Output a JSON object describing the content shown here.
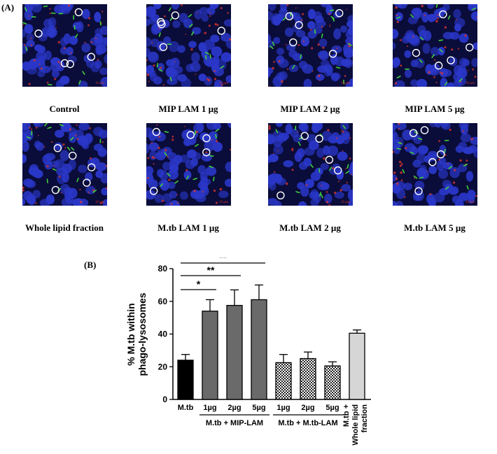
{
  "panel_a_label": "(A)",
  "panel_b_label": "(B)",
  "micrographs": [
    {
      "caption": "Control",
      "scale": "10 µm"
    },
    {
      "caption": "MIP LAM 1 µg",
      "scale": "10 µm"
    },
    {
      "caption": "MIP LAM 2 µg",
      "scale": "10 µm"
    },
    {
      "caption": "MIP LAM 5 µg",
      "scale": "10 µm"
    },
    {
      "caption": "Whole lipid fraction",
      "scale": "10 µm"
    },
    {
      "caption": "M.tb LAM 1 µg",
      "scale": "10 µm"
    },
    {
      "caption": "M.tb LAM 2 µg",
      "scale": "10 µm"
    },
    {
      "caption": "M.tb LAM 5 µg",
      "scale": "10 µm"
    }
  ],
  "colors": {
    "nucleus": "#2a37c8",
    "background": "#0a0c3a",
    "mtb": "#3fd23a",
    "lysosome": "#d8342c",
    "circle": "#ffffff"
  },
  "chart_data": {
    "type": "bar",
    "ylabel_lines": [
      "% M.tb within",
      "phago-lysosomes"
    ],
    "ylim": [
      0,
      80
    ],
    "yticks": [
      0,
      20,
      40,
      60,
      80
    ],
    "bars": [
      {
        "label": "M.tb",
        "value": 24,
        "error": 3.5,
        "fill": "black"
      },
      {
        "label": "1µg",
        "value": 54,
        "error": 7,
        "fill": "dark-gray"
      },
      {
        "label": "2µg",
        "value": 57.5,
        "error": 9.5,
        "fill": "dark-gray"
      },
      {
        "label": "5µg",
        "value": 61,
        "error": 9,
        "fill": "dark-gray"
      },
      {
        "label": "1µg",
        "value": 22.5,
        "error": 5,
        "fill": "checkered"
      },
      {
        "label": "2µg",
        "value": 25,
        "error": 4,
        "fill": "checkered"
      },
      {
        "label": "5µg",
        "value": 20.5,
        "error": 2.5,
        "fill": "checkered"
      },
      {
        "label_lines": [
          "M.tb +",
          "Whole lipid",
          "fraction"
        ],
        "value": 40.5,
        "error": 2,
        "fill": "light-gray"
      }
    ],
    "groups": [
      {
        "label": "M.tb + MIP-LAM",
        "from": 1,
        "to": 3
      },
      {
        "label": "M.tb + M.tb-LAM",
        "from": 4,
        "to": 6
      }
    ],
    "significance": [
      {
        "label": "*",
        "from": 0,
        "to": 1
      },
      {
        "label": "**",
        "from": 0,
        "to": 2
      },
      {
        "label": "**",
        "from": 0,
        "to": 3
      }
    ]
  }
}
